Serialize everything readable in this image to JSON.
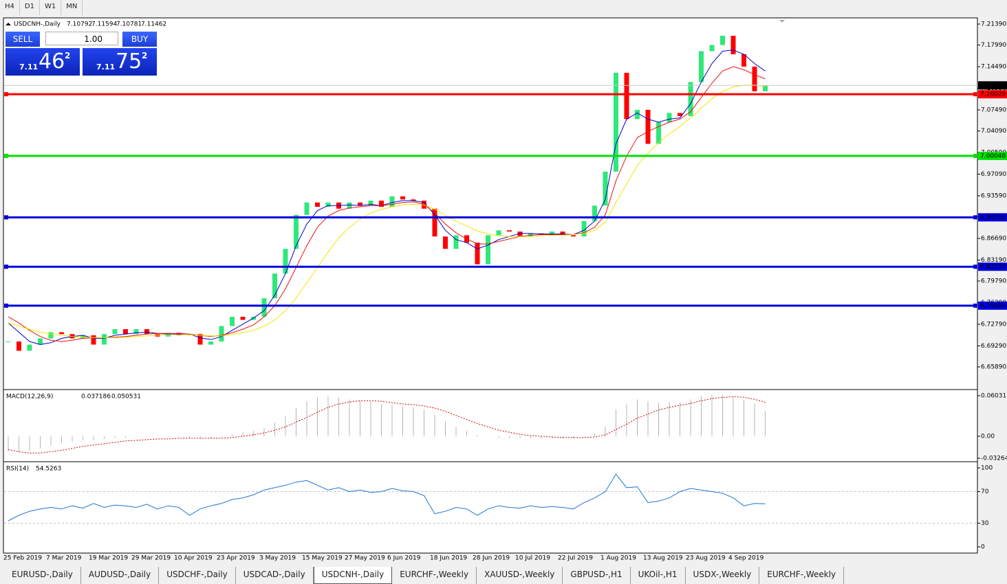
{
  "toolbar": {
    "timeframes": [
      "H4",
      "D1",
      "W1",
      "MN"
    ]
  },
  "trade_panel": {
    "sell_label": "SELL",
    "lot": "1.00",
    "buy_label": "BUY",
    "sell_price": {
      "prefix": "7.11",
      "big": "46",
      "sup": "2"
    },
    "buy_price": {
      "prefix": "7.11",
      "big": "75",
      "sup": "2"
    }
  },
  "chart_data": [
    {
      "type": "candlestick",
      "title": "USDCNH-,Daily",
      "quote": {
        "open": 7.10792,
        "high": 7.11594,
        "low": 7.10781
      },
      "categories": [
        "25 Feb 2019",
        null,
        null,
        null,
        "7 Mar 2019",
        null,
        null,
        null,
        "19 Mar 2019",
        null,
        null,
        null,
        "29 Mar 2019",
        null,
        null,
        null,
        "10 Apr 2019",
        null,
        null,
        null,
        "23 Apr 2019",
        null,
        null,
        null,
        "3 May 2019",
        null,
        null,
        null,
        "15 May 2019",
        null,
        null,
        null,
        "27 May 2019",
        null,
        null,
        null,
        "6 Jun 2019",
        null,
        null,
        null,
        "18 Jun 2019",
        null,
        null,
        null,
        "28 Jun 2019",
        null,
        null,
        null,
        "10 Jul 2019",
        null,
        null,
        null,
        "22 Jul 2019",
        null,
        null,
        null,
        "1 Aug 2019",
        null,
        null,
        null,
        "13 Aug 2019",
        null,
        null,
        null,
        "23 Aug 2019",
        null,
        null,
        null,
        "4 Sep 2019",
        null,
        null,
        null
      ],
      "values": [
        6.7,
        6.685,
        6.695,
        6.705,
        6.715,
        6.712,
        6.705,
        6.71,
        6.695,
        6.712,
        6.72,
        6.712,
        6.72,
        6.712,
        6.708,
        6.714,
        6.71,
        6.712,
        6.695,
        6.7,
        6.725,
        6.74,
        6.735,
        6.74,
        6.77,
        6.81,
        6.85,
        6.905,
        6.925,
        6.918,
        6.925,
        6.915,
        6.925,
        6.92,
        6.928,
        6.918,
        6.935,
        6.93,
        6.928,
        6.915,
        6.87,
        6.85,
        6.872,
        6.86,
        6.825,
        6.872,
        6.88,
        6.878,
        6.87,
        6.875,
        6.873,
        6.878,
        6.872,
        6.87,
        6.895,
        6.92,
        6.975,
        7.135,
        7.06,
        7.075,
        7.02,
        7.055,
        7.07,
        7.065,
        7.12,
        7.17,
        7.18,
        7.195,
        7.165,
        7.145,
        7.105,
        7.11462
      ],
      "up_color": "#2ee87a",
      "down_color": "#ff0000",
      "series": [
        {
          "color": "#0000cc",
          "values": [
            6.73,
            6.715,
            6.7,
            6.695,
            6.698,
            6.705,
            6.708,
            6.71,
            6.705,
            6.705,
            6.71,
            6.712,
            6.714,
            6.715,
            6.713,
            6.712,
            6.712,
            6.712,
            6.706,
            6.703,
            6.708,
            6.718,
            6.728,
            6.738,
            6.75,
            6.775,
            6.81,
            6.855,
            6.89,
            6.912,
            6.92,
            6.92,
            6.921,
            6.92,
            6.922,
            6.92,
            6.925,
            6.928,
            6.928,
            6.925,
            6.905,
            6.88,
            6.865,
            6.86,
            6.85,
            6.856,
            6.865,
            6.87,
            6.875,
            6.875,
            6.874,
            6.874,
            6.874,
            6.873,
            6.88,
            6.895,
            6.93,
            7.02,
            7.06,
            7.07,
            7.06,
            7.055,
            7.06,
            7.062,
            7.085,
            7.12,
            7.15,
            7.17,
            7.172,
            7.165,
            7.15,
            7.138
          ]
        },
        {
          "color": "#ee1111",
          "values": [
            6.74,
            6.73,
            6.718,
            6.708,
            6.702,
            6.7,
            6.702,
            6.705,
            6.706,
            6.706,
            6.707,
            6.708,
            6.71,
            6.712,
            6.713,
            6.713,
            6.713,
            6.712,
            6.71,
            6.708,
            6.71,
            6.714,
            6.72,
            6.727,
            6.74,
            6.758,
            6.785,
            6.82,
            6.855,
            6.885,
            6.903,
            6.912,
            6.916,
            6.918,
            6.92,
            6.92,
            6.922,
            6.925,
            6.926,
            6.922,
            6.908,
            6.89,
            6.876,
            6.866,
            6.858,
            6.858,
            6.862,
            6.866,
            6.87,
            6.872,
            6.873,
            6.873,
            6.873,
            6.873,
            6.876,
            6.885,
            6.905,
            6.96,
            7.0,
            7.03,
            7.04,
            7.048,
            7.055,
            7.06,
            7.072,
            7.095,
            7.118,
            7.138,
            7.145,
            7.14,
            7.132,
            7.125
          ]
        },
        {
          "color": "#f2e600",
          "values": [
            6.73,
            6.725,
            6.72,
            6.715,
            6.712,
            6.71,
            6.708,
            6.707,
            6.706,
            6.706,
            6.706,
            6.707,
            6.708,
            6.709,
            6.71,
            6.711,
            6.711,
            6.711,
            6.71,
            6.709,
            6.709,
            6.711,
            6.714,
            6.718,
            6.725,
            6.735,
            6.75,
            6.77,
            6.795,
            6.82,
            6.845,
            6.868,
            6.885,
            6.898,
            6.908,
            6.914,
            6.918,
            6.921,
            6.922,
            6.921,
            6.914,
            6.904,
            6.895,
            6.887,
            6.879,
            6.874,
            6.871,
            6.87,
            6.87,
            6.87,
            6.871,
            6.872,
            6.872,
            6.873,
            6.875,
            6.88,
            6.893,
            6.925,
            6.955,
            6.985,
            7.005,
            7.022,
            7.036,
            7.048,
            7.062,
            7.078,
            7.093,
            7.105,
            7.112,
            7.115,
            7.115,
            7.113
          ]
        }
      ],
      "levels": [
        {
          "value": 7.10029,
          "color": "#ff0000"
        },
        {
          "value": 7.00048,
          "color": "#00e000"
        },
        {
          "value": 6.901,
          "label": "6.90100",
          "color": "#0000dd"
        },
        {
          "value": 6.82103,
          "color": "#0000dd"
        },
        {
          "value": 6.75804,
          "color": "#0000dd"
        }
      ],
      "ylim": [
        6.6244,
        7.2217
      ],
      "yticks": [
        {
          "value": 7.2139,
          "label": "7.21390"
        },
        {
          "value": 7.1799,
          "label": "7.17990"
        },
        {
          "value": 7.1449,
          "label": "7.14490"
        },
        {
          "value": 7.1099,
          "label": "7.10990"
        },
        {
          "value": 7.0749,
          "label": "7.07490"
        },
        {
          "value": 7.0409,
          "label": "7.04090"
        },
        {
          "value": 7.0059,
          "label": "7.00590"
        },
        {
          "value": 6.9709,
          "label": "6.97090"
        },
        {
          "value": 6.9359,
          "label": "6.93590"
        },
        {
          "value": 6.9019,
          "label": "6.90190"
        },
        {
          "value": 6.8669,
          "label": "6.86690"
        },
        {
          "value": 6.8319,
          "label": "6.83190"
        },
        {
          "value": 6.7979,
          "label": "6.79790"
        },
        {
          "value": 6.7629,
          "label": "6.76290"
        },
        {
          "value": 6.7279,
          "label": "6.72790"
        },
        {
          "value": 6.6929,
          "label": "6.69290"
        },
        {
          "value": 6.6589,
          "label": "6.65890"
        }
      ]
    },
    {
      "type": "macd",
      "title": "MACD(12,26,9)",
      "series": [
        {
          "kind": "histogram",
          "color": "#b4b4b4",
          "values": [
            -0.022,
            -0.024,
            -0.022,
            -0.018,
            -0.014,
            -0.01,
            -0.008,
            -0.006,
            -0.006,
            -0.004,
            -0.002,
            -0.002,
            -0.001,
            -0.001,
            -0.001,
            -0.001,
            -0.001,
            -0.002,
            -0.003,
            -0.003,
            -0.001,
            0.003,
            0.006,
            0.008,
            0.013,
            0.02,
            0.03,
            0.042,
            0.052,
            0.058,
            0.059,
            0.058,
            0.055,
            0.053,
            0.051,
            0.048,
            0.046,
            0.045,
            0.043,
            0.04,
            0.032,
            0.022,
            0.014,
            0.008,
            0.002,
            0.0,
            -0.002,
            -0.003,
            -0.003,
            -0.003,
            -0.003,
            -0.003,
            -0.003,
            -0.003,
            -0.001,
            0.004,
            0.014,
            0.04,
            0.048,
            0.055,
            0.052,
            0.05,
            0.051,
            0.05,
            0.055,
            0.06,
            0.062,
            0.062,
            0.058,
            0.054,
            0.048,
            0.037186
          ]
        },
        {
          "kind": "dotted",
          "color": "#cc0000",
          "values": [
            -0.02,
            -0.023,
            -0.025,
            -0.025,
            -0.023,
            -0.021,
            -0.018,
            -0.015,
            -0.013,
            -0.011,
            -0.009,
            -0.007,
            -0.006,
            -0.005,
            -0.004,
            -0.004,
            -0.003,
            -0.003,
            -0.003,
            -0.003,
            -0.003,
            -0.002,
            0.0,
            0.002,
            0.005,
            0.009,
            0.014,
            0.021,
            0.028,
            0.036,
            0.043,
            0.048,
            0.051,
            0.053,
            0.053,
            0.052,
            0.05,
            0.048,
            0.047,
            0.045,
            0.042,
            0.037,
            0.031,
            0.025,
            0.019,
            0.014,
            0.009,
            0.006,
            0.003,
            0.001,
            0.0,
            -0.001,
            -0.002,
            -0.002,
            -0.002,
            -0.001,
            0.002,
            0.01,
            0.018,
            0.027,
            0.033,
            0.039,
            0.043,
            0.046,
            0.049,
            0.053,
            0.056,
            0.058,
            0.059,
            0.058,
            0.055,
            0.050531
          ]
        }
      ],
      "ylim": [
        -0.0358,
        0.06747
      ],
      "yticks": [
        0.060317,
        {
          "value": 0,
          "label": "0.00"
        },
        -0.032648
      ]
    },
    {
      "type": "rsi",
      "title": "RSI(14)",
      "series": [
        {
          "kind": "line",
          "color": "#1e73d2",
          "values": [
            33,
            40,
            45,
            48,
            50,
            48,
            52,
            49,
            55,
            50,
            53,
            52,
            50,
            54,
            48,
            52,
            50,
            40,
            48,
            52,
            55,
            60,
            62,
            66,
            72,
            75,
            78,
            82,
            84,
            78,
            72,
            75,
            70,
            72,
            69,
            70,
            74,
            71,
            70,
            65,
            42,
            45,
            50,
            48,
            40,
            48,
            52,
            50,
            49,
            52,
            50,
            51,
            50,
            48,
            56,
            62,
            70,
            92,
            75,
            76,
            56,
            58,
            62,
            70,
            74,
            72,
            70,
            68,
            62,
            52,
            55,
            54.5263
          ]
        }
      ],
      "levels": [
        70,
        30
      ],
      "ylim": [
        -6.1,
        106.1
      ],
      "yticks": [
        100,
        70,
        30,
        0
      ]
    }
  ],
  "tabs": [
    "EURUSD-,Daily",
    "AUDUSD-,Daily",
    "USDCHF-,Daily",
    "USDCAD-,Daily",
    "USDCNH-,Daily",
    "EURCHF-,Weekly",
    "XAUUSD-,Weekly",
    "GBPUSD-,H1",
    "UKOil-,H1",
    "USDX-,Weekly",
    "EURCHF-,Weekly"
  ],
  "active_tab": "USDCNH-,Daily"
}
